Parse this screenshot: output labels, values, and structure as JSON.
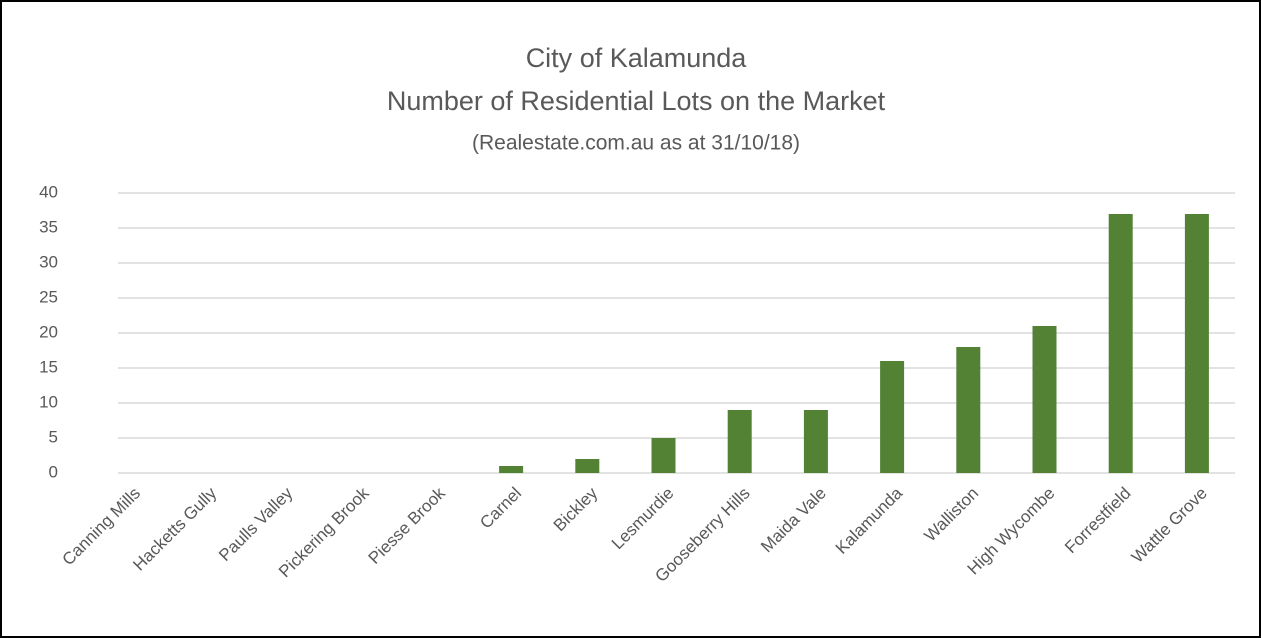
{
  "chart_data": {
    "type": "bar",
    "title": [
      "City of Kalamunda",
      "Number of Residential Lots on the Market"
    ],
    "subtitle": "(Realestate.com.au as at 31/10/18)",
    "categories": [
      "Canning Mills",
      "Hacketts Gully",
      "Paulls Valley",
      "Pickering Brook",
      "Piesse Brook",
      "Carnel",
      "Bickley",
      "Lesmurdie",
      "Gooseberry Hills",
      "Maida Vale",
      "Kalamunda",
      "Walliston",
      "High Wycombe",
      "Forrestfield",
      "Wattle Grove"
    ],
    "values": [
      0,
      0,
      0,
      0,
      0,
      1,
      2,
      5,
      9,
      9,
      16,
      18,
      21,
      37,
      37
    ],
    "color": "#548235",
    "ylim": [
      0,
      40
    ],
    "yticks": [
      0,
      5,
      10,
      15,
      20,
      25,
      30,
      35,
      40
    ],
    "grid": true
  }
}
